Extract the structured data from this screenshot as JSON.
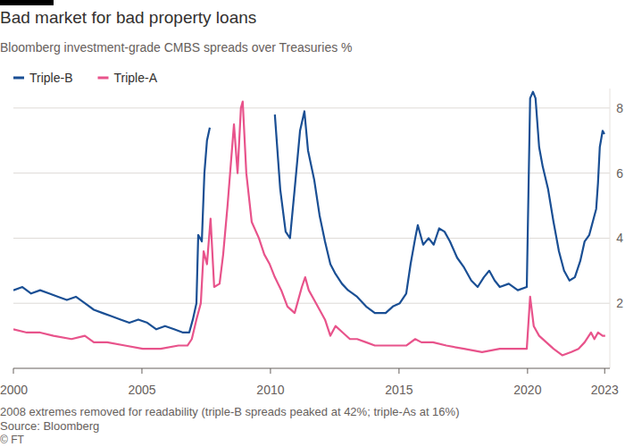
{
  "chart_data": {
    "type": "line",
    "title": "Bad market for bad property loans",
    "subtitle": "Bloomberg investment-grade CMBS spreads over Treasuries %",
    "note": "2008 extremes removed for readability (triple-B spreads peaked at 42%; triple-As at 16%)",
    "source": "Source: Bloomberg",
    "credit": "© FT",
    "xlim": [
      2000,
      2023.2
    ],
    "xticks": [
      2000,
      2005,
      2010,
      2015,
      2020,
      2023
    ],
    "ylim": [
      0,
      8.6
    ],
    "yticks": [
      2,
      4,
      6,
      8
    ],
    "grid": true,
    "legend": "top-left",
    "series": [
      {
        "name": "Triple-B",
        "color": "#1a4f94",
        "x": [
          2000.0,
          2000.35,
          2000.69,
          2001.04,
          2001.39,
          2001.74,
          2002.08,
          2002.43,
          2002.78,
          2003.13,
          2003.47,
          2003.82,
          2004.17,
          2004.51,
          2004.86,
          2005.21,
          2005.56,
          2005.9,
          2006.25,
          2006.6,
          2006.84,
          2006.98,
          2007.12,
          2007.19,
          2007.33,
          2007.43,
          2007.53,
          2007.64,
          2009.0,
          2010.17,
          2010.38,
          2010.59,
          2010.76,
          2010.94,
          2011.15,
          2011.32,
          2011.46,
          2011.7,
          2011.91,
          2012.12,
          2012.33,
          2012.53,
          2012.78,
          2013.02,
          2013.37,
          2013.72,
          2014.06,
          2014.48,
          2014.76,
          2015.03,
          2015.28,
          2015.45,
          2015.63,
          2015.73,
          2015.94,
          2016.15,
          2016.35,
          2016.56,
          2016.77,
          2016.98,
          2017.26,
          2017.53,
          2017.81,
          2018.06,
          2018.3,
          2018.51,
          2018.72,
          2018.92,
          2019.27,
          2019.62,
          2019.97,
          2020.1,
          2020.21,
          2020.31,
          2020.45,
          2020.59,
          2020.8,
          2021.01,
          2021.22,
          2021.42,
          2021.63,
          2021.84,
          2022.05,
          2022.22,
          2022.4,
          2022.57,
          2022.67,
          2022.74,
          2022.81,
          2022.92,
          2022.99
        ],
        "values": [
          2.4,
          2.5,
          2.3,
          2.4,
          2.3,
          2.2,
          2.1,
          2.2,
          2.0,
          1.8,
          1.7,
          1.6,
          1.5,
          1.4,
          1.5,
          1.4,
          1.2,
          1.3,
          1.2,
          1.1,
          1.1,
          1.5,
          2.0,
          4.1,
          3.9,
          6.0,
          7.0,
          7.4,
          null,
          7.8,
          5.5,
          4.2,
          4.0,
          5.5,
          7.3,
          7.9,
          6.7,
          5.8,
          4.7,
          3.9,
          3.2,
          2.9,
          2.6,
          2.4,
          2.2,
          1.9,
          1.7,
          1.7,
          1.9,
          2.0,
          2.3,
          3.2,
          4.0,
          4.4,
          3.8,
          4.0,
          3.8,
          4.3,
          4.2,
          3.9,
          3.4,
          3.1,
          2.7,
          2.5,
          2.8,
          3.0,
          2.7,
          2.5,
          2.6,
          2.4,
          2.5,
          8.3,
          8.5,
          8.3,
          6.8,
          6.2,
          5.5,
          4.5,
          3.6,
          3.0,
          2.7,
          2.8,
          3.3,
          3.9,
          4.1,
          4.6,
          4.9,
          5.7,
          6.8,
          7.3,
          7.2
        ]
      },
      {
        "name": "Triple-A",
        "color": "#e8538b",
        "x": [
          2000.0,
          2000.52,
          2001.04,
          2001.56,
          2002.26,
          2002.78,
          2003.13,
          2003.65,
          2004.34,
          2005.03,
          2005.73,
          2006.42,
          2006.77,
          2006.94,
          2007.12,
          2007.29,
          2007.4,
          2007.53,
          2007.67,
          2007.81,
          2008.02,
          2008.16,
          2008.33,
          2008.58,
          2008.72,
          2008.85,
          2008.92,
          2009.06,
          2009.27,
          2009.55,
          2009.76,
          2009.97,
          2010.17,
          2010.42,
          2010.66,
          2010.94,
          2011.22,
          2011.35,
          2011.49,
          2011.7,
          2011.91,
          2012.12,
          2012.33,
          2012.53,
          2012.81,
          2013.09,
          2013.37,
          2013.72,
          2014.06,
          2014.76,
          2015.28,
          2015.63,
          2015.87,
          2016.32,
          2016.84,
          2017.53,
          2018.23,
          2018.92,
          2019.62,
          2019.97,
          2020.1,
          2020.24,
          2020.45,
          2020.73,
          2021.01,
          2021.35,
          2021.7,
          2021.98,
          2022.22,
          2022.47,
          2022.6,
          2022.74,
          2022.92,
          2023.02
        ],
        "values": [
          1.2,
          1.1,
          1.1,
          1.0,
          0.9,
          1.0,
          0.8,
          0.8,
          0.7,
          0.6,
          0.6,
          0.7,
          0.7,
          0.9,
          1.5,
          2.0,
          3.6,
          3.2,
          4.6,
          2.5,
          2.6,
          3.5,
          5.0,
          7.5,
          6.0,
          8.0,
          8.2,
          6.0,
          4.5,
          4.0,
          3.5,
          3.2,
          2.8,
          2.4,
          1.9,
          1.7,
          2.5,
          2.8,
          2.4,
          2.1,
          1.8,
          1.5,
          1.0,
          1.3,
          1.1,
          0.9,
          0.9,
          0.8,
          0.7,
          0.7,
          0.7,
          0.9,
          0.8,
          0.8,
          0.7,
          0.6,
          0.5,
          0.6,
          0.6,
          0.6,
          2.2,
          1.3,
          1.0,
          0.8,
          0.6,
          0.4,
          0.5,
          0.6,
          0.8,
          1.1,
          0.9,
          1.1,
          1.0,
          1.0
        ]
      }
    ]
  }
}
